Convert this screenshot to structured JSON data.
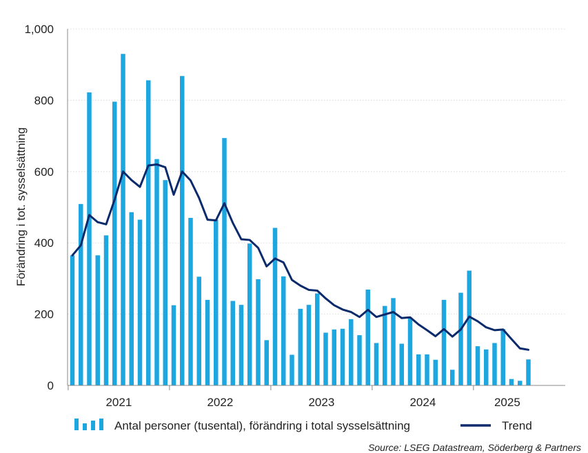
{
  "chart_data": {
    "type": "bar",
    "ylabel": "Förändring i tot. sysselsättning",
    "ylim": [
      0,
      1000
    ],
    "y_ticks": [
      0,
      200,
      400,
      600,
      800,
      1000
    ],
    "y_tick_labels": [
      "0",
      "200",
      "400",
      "600",
      "800",
      "1,000"
    ],
    "x_tick_labels": [
      "2021",
      "2022",
      "2023",
      "2024",
      "2025"
    ],
    "grid": "horizontal dotted",
    "legend_position": "bottom",
    "series": [
      {
        "name": "Antal personer (tusental), förändring i total sysselsättning",
        "type": "bar",
        "color": "#1ea6e0",
        "values": [
          365,
          509,
          822,
          365,
          421,
          796,
          930,
          486,
          465,
          856,
          635,
          576,
          225,
          868,
          470,
          305,
          240,
          465,
          694,
          237,
          226,
          398,
          298,
          127,
          442,
          306,
          86,
          215,
          226,
          258,
          148,
          157,
          159,
          186,
          141,
          269,
          119,
          223,
          245,
          117,
          190,
          87,
          87,
          72,
          240,
          44,
          260,
          322,
          110,
          101,
          119,
          158,
          18,
          13,
          73
        ]
      },
      {
        "name": "Trend",
        "type": "line",
        "color": "#0b2a6b",
        "values": [
          365,
          393,
          478,
          458,
          452,
          521,
          600,
          576,
          557,
          617,
          620,
          612,
          535,
          600,
          575,
          526,
          465,
          463,
          511,
          456,
          410,
          408,
          386,
          334,
          356,
          345,
          296,
          280,
          268,
          266,
          244,
          225,
          213,
          206,
          192,
          212,
          192,
          199,
          206,
          189,
          191,
          171,
          155,
          138,
          158,
          137,
          157,
          193,
          180,
          163,
          155,
          157,
          130,
          104,
          100
        ]
      }
    ],
    "source": "Source: LSEG Datastream, Söderberg & Partners"
  }
}
